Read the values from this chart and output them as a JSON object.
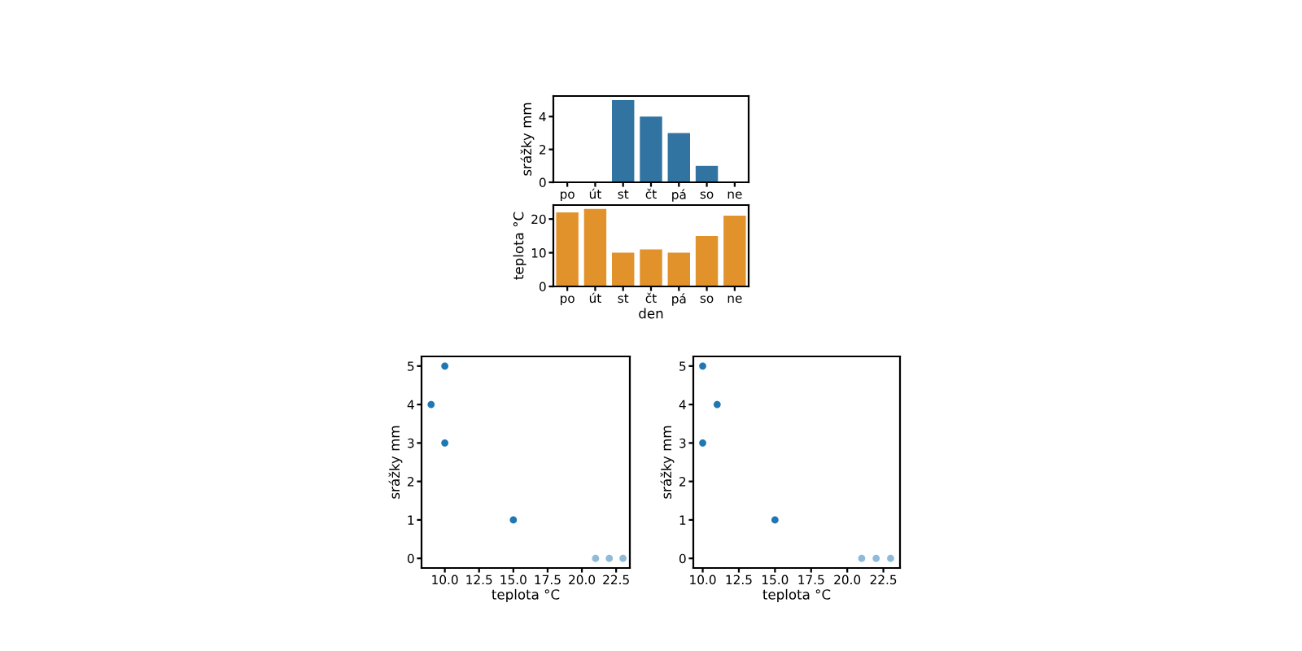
{
  "chart_data": [
    {
      "type": "bar",
      "ylabel": "srážky mm",
      "categories": [
        "po",
        "út",
        "st",
        "čt",
        "pá",
        "so",
        "ne"
      ],
      "values": [
        0,
        0,
        5,
        4,
        3,
        1,
        0
      ],
      "color": "#3274a1",
      "ylim": [
        0,
        5.25
      ],
      "yticks": [
        0,
        2,
        4
      ]
    },
    {
      "type": "bar",
      "xlabel": "den",
      "ylabel": "teplota °C",
      "categories": [
        "po",
        "út",
        "st",
        "čt",
        "pá",
        "so",
        "ne"
      ],
      "values": [
        22,
        23,
        10,
        11,
        10,
        15,
        21
      ],
      "color": "#e1922b",
      "ylim": [
        0,
        24.15
      ],
      "yticks": [
        0,
        10,
        20
      ]
    },
    {
      "type": "scatter",
      "xlabel": "teplota °C",
      "ylabel": "srážky mm",
      "x": [
        9,
        10,
        10,
        15,
        21,
        22,
        23
      ],
      "values": [
        4,
        5,
        3,
        1,
        0,
        0,
        0
      ],
      "colors": [
        "#1f77b4",
        "#1f77b4",
        "#1f77b4",
        "#1f77b4",
        "#8fbbd9",
        "#8fbbd9",
        "#8fbbd9"
      ],
      "xlim": [
        8.3,
        23.5
      ],
      "xticks": [
        {
          "value": 10,
          "label": "10.0"
        },
        {
          "value": 12.5,
          "label": "12.5"
        },
        {
          "value": 15,
          "label": "15.0"
        },
        {
          "value": 17.5,
          "label": "17.5"
        },
        {
          "value": 20,
          "label": "20.0"
        },
        {
          "value": 22.5,
          "label": "22.5"
        }
      ],
      "ylim": [
        -0.25,
        5.25
      ],
      "yticks": [
        0,
        1,
        2,
        3,
        4,
        5
      ]
    },
    {
      "type": "scatter",
      "xlabel": "teplota °C",
      "ylabel": "srážky mm",
      "x": [
        10,
        11,
        10,
        15,
        21,
        22,
        23
      ],
      "values": [
        5,
        4,
        3,
        1,
        0,
        0,
        0
      ],
      "colors": [
        "#1f77b4",
        "#1f77b4",
        "#1f77b4",
        "#1f77b4",
        "#8fbbd9",
        "#8fbbd9",
        "#8fbbd9"
      ],
      "xlim": [
        9.35,
        23.65
      ],
      "xticks": [
        {
          "value": 10,
          "label": "10.0"
        },
        {
          "value": 12.5,
          "label": "12.5"
        },
        {
          "value": 15,
          "label": "15.0"
        },
        {
          "value": 17.5,
          "label": "17.5"
        },
        {
          "value": 20,
          "label": "20.0"
        },
        {
          "value": 22.5,
          "label": "22.5"
        }
      ],
      "ylim": [
        -0.25,
        5.25
      ],
      "yticks": [
        0,
        1,
        2,
        3,
        4,
        5
      ]
    }
  ]
}
